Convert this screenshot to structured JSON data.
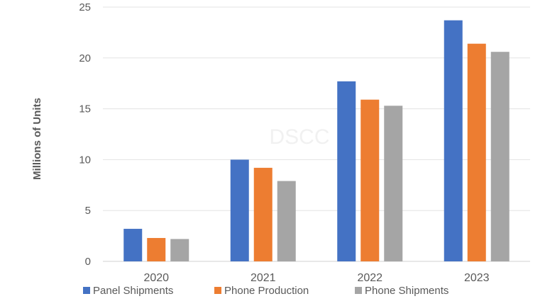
{
  "chart_data": {
    "type": "bar",
    "categories": [
      "2020",
      "2021",
      "2022",
      "2023"
    ],
    "series": [
      {
        "name": "Panel Shipments",
        "color": "#4472c4",
        "values": [
          3.2,
          10.0,
          17.7,
          23.7
        ]
      },
      {
        "name": "Phone Production",
        "color": "#ed7d31",
        "values": [
          2.3,
          9.2,
          15.9,
          21.4
        ]
      },
      {
        "name": "Phone Shipments",
        "color": "#a5a5a5",
        "values": [
          2.2,
          7.9,
          15.3,
          20.6
        ]
      }
    ],
    "title": "",
    "xlabel": "",
    "ylabel": "Millions of Units",
    "ylim": [
      0,
      25
    ],
    "yticks": [
      "0",
      "5",
      "10",
      "15",
      "20",
      "25"
    ],
    "grid": true,
    "legend_position": "bottom",
    "watermark": "DSCC"
  }
}
